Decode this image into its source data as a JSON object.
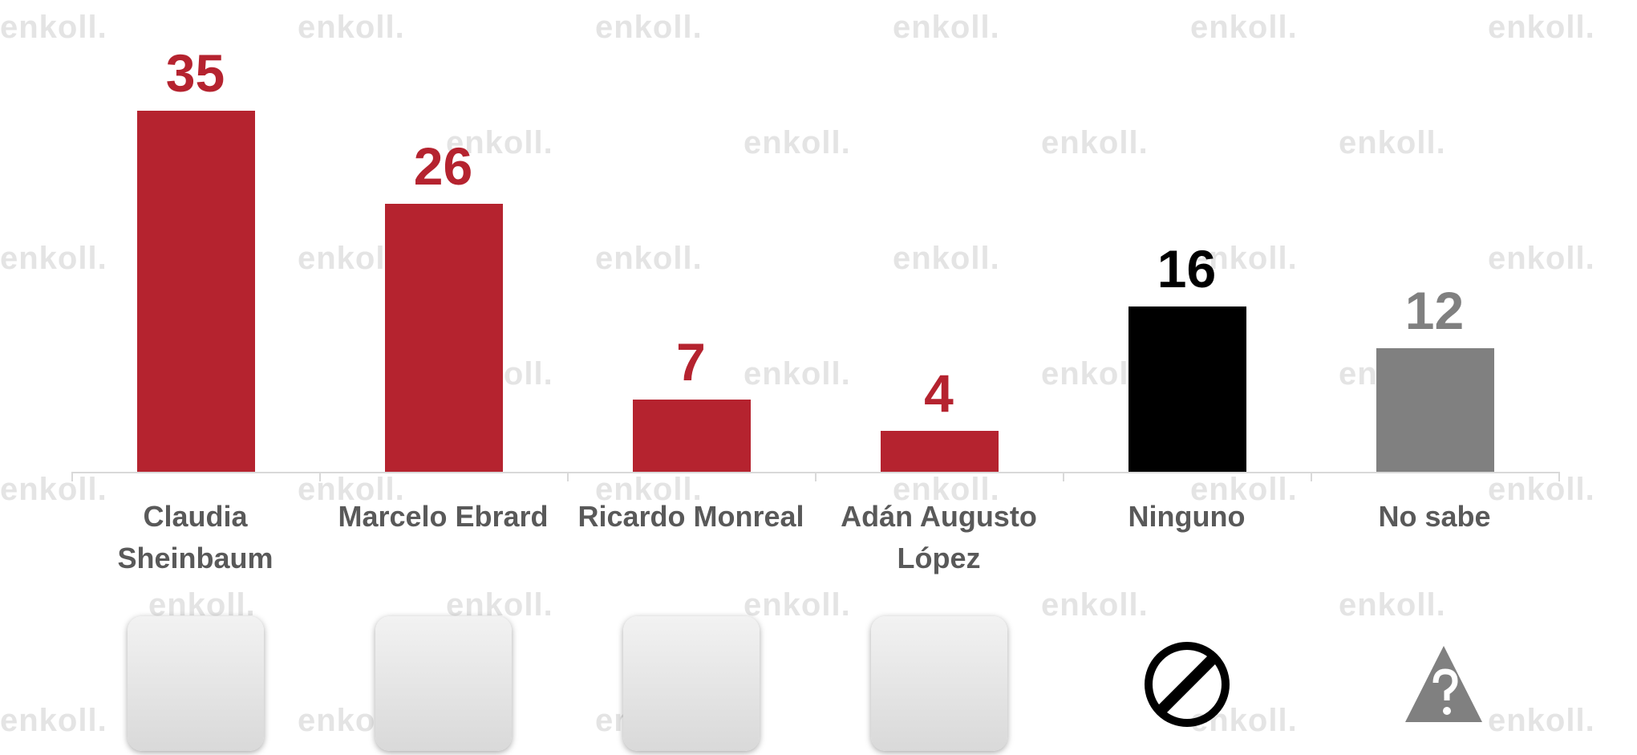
{
  "chart_data": {
    "type": "bar",
    "watermark": "enkoll.",
    "categories": [
      "Claudia Sheinbaum",
      "Marcelo Ebrard",
      "Ricardo Monreal",
      "Adán Augusto López",
      "Ninguno",
      "No sabe"
    ],
    "values": [
      35,
      26,
      7,
      4,
      16,
      12
    ],
    "colors": [
      "#b5232f",
      "#b5232f",
      "#b5232f",
      "#b5232f",
      "#000000",
      "#808080"
    ]
  }
}
